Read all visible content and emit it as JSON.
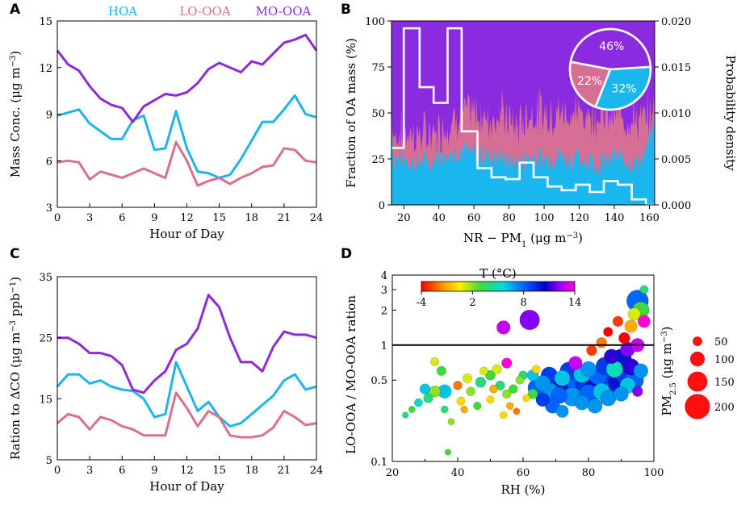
{
  "chart_data": [
    {
      "panel": "A",
      "type": "line",
      "xlabel": "Hour of Day",
      "ylabel": "Mass Conc. (μg m−3)",
      "xlim": [
        0,
        24
      ],
      "ylim": [
        3,
        15
      ],
      "xticks": [
        0,
        3,
        6,
        9,
        12,
        15,
        18,
        21,
        24
      ],
      "yticks": [
        3,
        6,
        9,
        12,
        15
      ],
      "x": [
        0,
        1,
        2,
        3,
        4,
        5,
        6,
        7,
        8,
        9,
        10,
        11,
        12,
        13,
        14,
        15,
        16,
        17,
        18,
        19,
        20,
        21,
        22,
        23,
        24
      ],
      "series": [
        {
          "name": "HOA",
          "color": "#1eb4ec",
          "values": [
            8.9,
            9.1,
            9.3,
            8.4,
            7.9,
            7.4,
            7.4,
            8.6,
            8.9,
            6.7,
            6.8,
            9.2,
            6.8,
            5.3,
            5.2,
            4.9,
            5.1,
            6.1,
            7.3,
            8.5,
            8.5,
            9.3,
            10.2,
            9.0,
            8.8
          ]
        },
        {
          "name": "LO-OOA",
          "color": "#d9708f",
          "values": [
            5.9,
            6.0,
            5.9,
            4.8,
            5.3,
            5.1,
            4.9,
            5.2,
            5.5,
            5.2,
            4.9,
            7.2,
            6.0,
            4.4,
            4.7,
            4.9,
            4.5,
            4.9,
            5.2,
            5.6,
            5.7,
            6.8,
            6.7,
            6.0,
            5.9
          ]
        },
        {
          "name": "MO-OOA",
          "color": "#8e2bd9",
          "values": [
            13.1,
            12.2,
            11.8,
            10.8,
            10.0,
            9.6,
            9.4,
            8.5,
            9.5,
            9.9,
            10.3,
            10.2,
            10.4,
            11.0,
            11.9,
            12.3,
            12.0,
            11.7,
            12.4,
            12.2,
            12.9,
            13.6,
            13.8,
            14.1,
            13.1
          ]
        }
      ]
    },
    {
      "panel": "B",
      "type": "area",
      "xlabel": "NR − PM1 (μg m−3)",
      "ylabel": "Fraction of OA mass (%)",
      "ylabel_right": "Probability density",
      "xlim": [
        13,
        163
      ],
      "ylim": [
        0,
        100
      ],
      "ylim_right": [
        0,
        0.02
      ],
      "xticks": [
        20,
        40,
        60,
        80,
        100,
        120,
        140,
        160
      ],
      "yticks": [
        0,
        25,
        50,
        75,
        100
      ],
      "yticks_right": [
        "0.000",
        "0.005",
        "0.010",
        "0.015",
        "0.020"
      ],
      "series": [
        {
          "name": "HOA",
          "color": "#19b7ee",
          "mean_fraction_percent": 32
        },
        {
          "name": "LO-OOA",
          "color": "#d66f93",
          "mean_fraction_percent": 22
        },
        {
          "name": "MO-OOA",
          "color": "#8a2be0",
          "mean_fraction_percent": 46
        }
      ],
      "fraction_x": [
        14,
        20,
        28,
        36,
        44,
        52,
        60,
        68,
        76,
        84,
        92,
        100,
        108,
        116,
        124,
        132,
        140,
        148,
        156,
        162
      ],
      "hoa_fraction": [
        24,
        25,
        23,
        24,
        28,
        30,
        28,
        27,
        26,
        22,
        26,
        25,
        27,
        24,
        25,
        22,
        26,
        24,
        23,
        44
      ],
      "lo_fraction": [
        13,
        14,
        15,
        14,
        16,
        19,
        22,
        20,
        24,
        20,
        24,
        25,
        23,
        26,
        24,
        28,
        22,
        24,
        22,
        6
      ],
      "histogram": {
        "edges": [
          13,
          20,
          29,
          37,
          45,
          53,
          62,
          70,
          78,
          86,
          94,
          102,
          110,
          118,
          126,
          134,
          142,
          150,
          158,
          163
        ],
        "density": [
          0.0062,
          0.0192,
          0.0128,
          0.0111,
          0.0192,
          0.008,
          0.004,
          0.003,
          0.0028,
          0.0046,
          0.003,
          0.002,
          0.0016,
          0.0022,
          0.0014,
          0.0026,
          0.0022,
          0.0006,
          0.0
        ]
      },
      "pie": {
        "slices": [
          {
            "name": "MO-OOA",
            "value": 46,
            "label": "46%"
          },
          {
            "name": "HOA",
            "value": 32,
            "label": "32%"
          },
          {
            "name": "LO-OOA",
            "value": 22,
            "label": "22%"
          }
        ]
      }
    },
    {
      "panel": "C",
      "type": "line",
      "xlabel": "Hour of Day",
      "ylabel": "Ration to ΔCO (μg m−3 ppb−1)",
      "xlim": [
        0,
        24
      ],
      "ylim": [
        5,
        35
      ],
      "xticks": [
        0,
        3,
        6,
        9,
        12,
        15,
        18,
        21,
        24
      ],
      "yticks": [
        5,
        15,
        25,
        35
      ],
      "x": [
        0,
        1,
        2,
        3,
        4,
        5,
        6,
        7,
        8,
        9,
        10,
        11,
        12,
        13,
        14,
        15,
        16,
        17,
        18,
        19,
        20,
        21,
        22,
        23,
        24
      ],
      "series": [
        {
          "name": "HOA",
          "color": "#1eb4ec",
          "values": [
            17,
            19,
            19,
            17.5,
            18,
            17,
            16.5,
            16.3,
            15,
            12,
            12.5,
            21,
            17,
            13,
            14.5,
            12,
            10.5,
            11,
            12.5,
            14,
            15.5,
            18,
            19,
            16.5,
            17
          ]
        },
        {
          "name": "LO-OOA",
          "color": "#d9708f",
          "values": [
            11,
            12.5,
            12,
            10,
            12,
            11.5,
            10.5,
            10,
            9,
            9,
            9,
            16,
            13.5,
            10.5,
            13,
            12,
            9,
            8.7,
            8.7,
            9,
            10.3,
            13,
            12,
            10.7,
            11
          ]
        },
        {
          "name": "MO-OOA",
          "color": "#8e2bd9",
          "values": [
            25,
            25,
            24,
            22.5,
            22.5,
            22,
            20.5,
            16.5,
            16,
            18,
            19.5,
            23,
            24,
            26.5,
            32,
            30,
            25,
            21,
            21,
            19.5,
            23.5,
            26,
            25.5,
            25.5,
            25
          ]
        }
      ]
    },
    {
      "panel": "D",
      "type": "scatter",
      "xlabel": "RH (%)",
      "ylabel": "LO-OOA / MO-OOA  ration",
      "xlim": [
        20,
        100
      ],
      "ylim": [
        0.1,
        4
      ],
      "yscale": "log",
      "xticks": [
        20,
        40,
        60,
        80,
        100
      ],
      "yticks": [
        0.1,
        0.5,
        1,
        2,
        3,
        4
      ],
      "ytick_labels": [
        "0.1",
        "0.5",
        "1",
        "2",
        "3",
        "4"
      ],
      "reference_line_y": 1,
      "colorbar": {
        "title": "T (°C)",
        "ticks": [
          "-4",
          "2",
          "8",
          "14"
        ],
        "range": [
          -4,
          14
        ]
      },
      "size_legend": {
        "title": "PM2.5 (μg m−3)",
        "values": [
          50,
          100,
          150,
          200
        ],
        "labels": [
          "50",
          "100",
          "150",
          "200"
        ]
      },
      "points": [
        {
          "x": 24,
          "y": 0.25,
          "t": 4,
          "pm": 20
        },
        {
          "x": 26,
          "y": 0.28,
          "t": 3,
          "pm": 25
        },
        {
          "x": 28,
          "y": 0.32,
          "t": 5,
          "pm": 40
        },
        {
          "x": 30,
          "y": 0.42,
          "t": 6,
          "pm": 60
        },
        {
          "x": 31,
          "y": 0.35,
          "t": 4,
          "pm": 50
        },
        {
          "x": 33,
          "y": 0.4,
          "t": 2,
          "pm": 70
        },
        {
          "x": 33,
          "y": 0.72,
          "t": 1,
          "pm": 40
        },
        {
          "x": 35,
          "y": 0.6,
          "t": 3,
          "pm": 50
        },
        {
          "x": 36,
          "y": 0.28,
          "t": 4,
          "pm": 30
        },
        {
          "x": 36,
          "y": 0.4,
          "t": 6,
          "pm": 90
        },
        {
          "x": 37,
          "y": 0.12,
          "t": 3,
          "pm": 20
        },
        {
          "x": 38,
          "y": 0.22,
          "t": 2,
          "pm": 25
        },
        {
          "x": 40,
          "y": 0.45,
          "t": -2,
          "pm": 45
        },
        {
          "x": 41,
          "y": 0.33,
          "t": 0,
          "pm": 40
        },
        {
          "x": 42,
          "y": 0.28,
          "t": -1,
          "pm": 30
        },
        {
          "x": 43,
          "y": 0.52,
          "t": 1,
          "pm": 50
        },
        {
          "x": 44,
          "y": 0.4,
          "t": 2,
          "pm": 45
        },
        {
          "x": 46,
          "y": 0.3,
          "t": 3,
          "pm": 35
        },
        {
          "x": 47,
          "y": 0.48,
          "t": 4,
          "pm": 60
        },
        {
          "x": 48,
          "y": 0.6,
          "t": 1,
          "pm": 40
        },
        {
          "x": 50,
          "y": 0.34,
          "t": 0,
          "pm": 35
        },
        {
          "x": 50,
          "y": 0.55,
          "t": 3,
          "pm": 55
        },
        {
          "x": 51,
          "y": 0.42,
          "t": -1,
          "pm": 40
        },
        {
          "x": 52,
          "y": 0.62,
          "t": 1,
          "pm": 50
        },
        {
          "x": 53,
          "y": 0.45,
          "t": 4,
          "pm": 50
        },
        {
          "x": 54,
          "y": 0.25,
          "t": 0,
          "pm": 30
        },
        {
          "x": 54,
          "y": 1.42,
          "t": 13,
          "pm": 90
        },
        {
          "x": 55,
          "y": 0.7,
          "t": 14,
          "pm": 60
        },
        {
          "x": 55,
          "y": 0.38,
          "t": 2,
          "pm": 45
        },
        {
          "x": 56,
          "y": 0.3,
          "t": -1,
          "pm": 30
        },
        {
          "x": 57,
          "y": 0.42,
          "t": 3,
          "pm": 45
        },
        {
          "x": 58,
          "y": 0.27,
          "t": -2,
          "pm": 25
        },
        {
          "x": 59,
          "y": 0.5,
          "t": 2,
          "pm": 40
        },
        {
          "x": 60,
          "y": 0.55,
          "t": 4,
          "pm": 45
        },
        {
          "x": 61,
          "y": 0.35,
          "t": 0,
          "pm": 30
        },
        {
          "x": 62,
          "y": 1.65,
          "t": 12,
          "pm": 150
        },
        {
          "x": 63,
          "y": 0.38,
          "t": 3,
          "pm": 55
        },
        {
          "x": 63,
          "y": 0.55,
          "t": 6,
          "pm": 70
        },
        {
          "x": 64,
          "y": 0.43,
          "t": 8,
          "pm": 120
        },
        {
          "x": 64,
          "y": 0.62,
          "t": 0,
          "pm": 40
        },
        {
          "x": 66,
          "y": 0.47,
          "t": 7,
          "pm": 110
        },
        {
          "x": 66,
          "y": 0.34,
          "t": 9,
          "pm": 90
        },
        {
          "x": 68,
          "y": 0.4,
          "t": 7,
          "pm": 130
        },
        {
          "x": 68,
          "y": 0.55,
          "t": 9,
          "pm": 120
        },
        {
          "x": 69,
          "y": 0.3,
          "t": 8,
          "pm": 100
        },
        {
          "x": 70,
          "y": 0.46,
          "t": 10,
          "pm": 140
        },
        {
          "x": 71,
          "y": 0.37,
          "t": 8,
          "pm": 120
        },
        {
          "x": 72,
          "y": 0.52,
          "t": 6,
          "pm": 110
        },
        {
          "x": 72,
          "y": 0.27,
          "t": 7,
          "pm": 80
        },
        {
          "x": 73,
          "y": 0.44,
          "t": 10,
          "pm": 150
        },
        {
          "x": 74,
          "y": 0.6,
          "t": 9,
          "pm": 130
        },
        {
          "x": 75,
          "y": 0.36,
          "t": 7,
          "pm": 140
        },
        {
          "x": 76,
          "y": 0.5,
          "t": 8,
          "pm": 150
        },
        {
          "x": 76,
          "y": 0.7,
          "t": 13,
          "pm": 90
        },
        {
          "x": 77,
          "y": 0.42,
          "t": 10,
          "pm": 160
        },
        {
          "x": 78,
          "y": 0.32,
          "t": 7,
          "pm": 100
        },
        {
          "x": 78,
          "y": 0.56,
          "t": 6,
          "pm": 120
        },
        {
          "x": 79,
          "y": 0.46,
          "t": 9,
          "pm": 150
        },
        {
          "x": 80,
          "y": 0.38,
          "t": 8,
          "pm": 140
        },
        {
          "x": 80,
          "y": 0.62,
          "t": 7,
          "pm": 110
        },
        {
          "x": 81,
          "y": 0.9,
          "t": -3,
          "pm": 60
        },
        {
          "x": 82,
          "y": 0.44,
          "t": 10,
          "pm": 150
        },
        {
          "x": 82,
          "y": 0.3,
          "t": 7,
          "pm": 100
        },
        {
          "x": 83,
          "y": 0.55,
          "t": 8,
          "pm": 140
        },
        {
          "x": 84,
          "y": 0.4,
          "t": 6,
          "pm": 120
        },
        {
          "x": 84,
          "y": 1.05,
          "t": -2,
          "pm": 60
        },
        {
          "x": 85,
          "y": 0.66,
          "t": 9,
          "pm": 130
        },
        {
          "x": 85,
          "y": 0.46,
          "t": 10,
          "pm": 150
        },
        {
          "x": 86,
          "y": 0.35,
          "t": 7,
          "pm": 110
        },
        {
          "x": 86,
          "y": 1.3,
          "t": -4,
          "pm": 50
        },
        {
          "x": 87,
          "y": 0.52,
          "t": 9,
          "pm": 150
        },
        {
          "x": 87,
          "y": 0.8,
          "t": 11,
          "pm": 100
        },
        {
          "x": 88,
          "y": 0.42,
          "t": 8,
          "pm": 150
        },
        {
          "x": 88,
          "y": 0.62,
          "t": 5,
          "pm": 120
        },
        {
          "x": 89,
          "y": 0.48,
          "t": 10,
          "pm": 150
        },
        {
          "x": 89,
          "y": 1.6,
          "t": -3,
          "pm": 60
        },
        {
          "x": 90,
          "y": 0.75,
          "t": 10,
          "pm": 160
        },
        {
          "x": 90,
          "y": 0.38,
          "t": 7,
          "pm": 100
        },
        {
          "x": 91,
          "y": 0.56,
          "t": 9,
          "pm": 140
        },
        {
          "x": 91,
          "y": 1.15,
          "t": -4,
          "pm": 70
        },
        {
          "x": 92,
          "y": 0.45,
          "t": 6,
          "pm": 110
        },
        {
          "x": 92,
          "y": 0.92,
          "t": 12,
          "pm": 100
        },
        {
          "x": 93,
          "y": 0.65,
          "t": 11,
          "pm": 120
        },
        {
          "x": 93,
          "y": 1.45,
          "t": -1,
          "pm": 80
        },
        {
          "x": 94,
          "y": 0.5,
          "t": 8,
          "pm": 140
        },
        {
          "x": 94,
          "y": 1.85,
          "t": 1,
          "pm": 80
        },
        {
          "x": 95,
          "y": 2.4,
          "t": 8,
          "pm": 170
        },
        {
          "x": 95,
          "y": 1.0,
          "t": 13,
          "pm": 90
        },
        {
          "x": 95,
          "y": 0.4,
          "t": 12,
          "pm": 60
        },
        {
          "x": 96,
          "y": 2.0,
          "t": 3,
          "pm": 120
        },
        {
          "x": 96,
          "y": 0.6,
          "t": 7,
          "pm": 100
        },
        {
          "x": 97,
          "y": 1.6,
          "t": 14,
          "pm": 80
        },
        {
          "x": 97,
          "y": 3.0,
          "t": 4,
          "pm": 40
        }
      ]
    }
  ],
  "labels": {
    "panel_a": "A",
    "panel_b": "B",
    "panel_c": "C",
    "panel_d": "D",
    "legend_hoa": "HOA",
    "legend_lo": "LO-OOA",
    "legend_mo": "MO-OOA"
  }
}
